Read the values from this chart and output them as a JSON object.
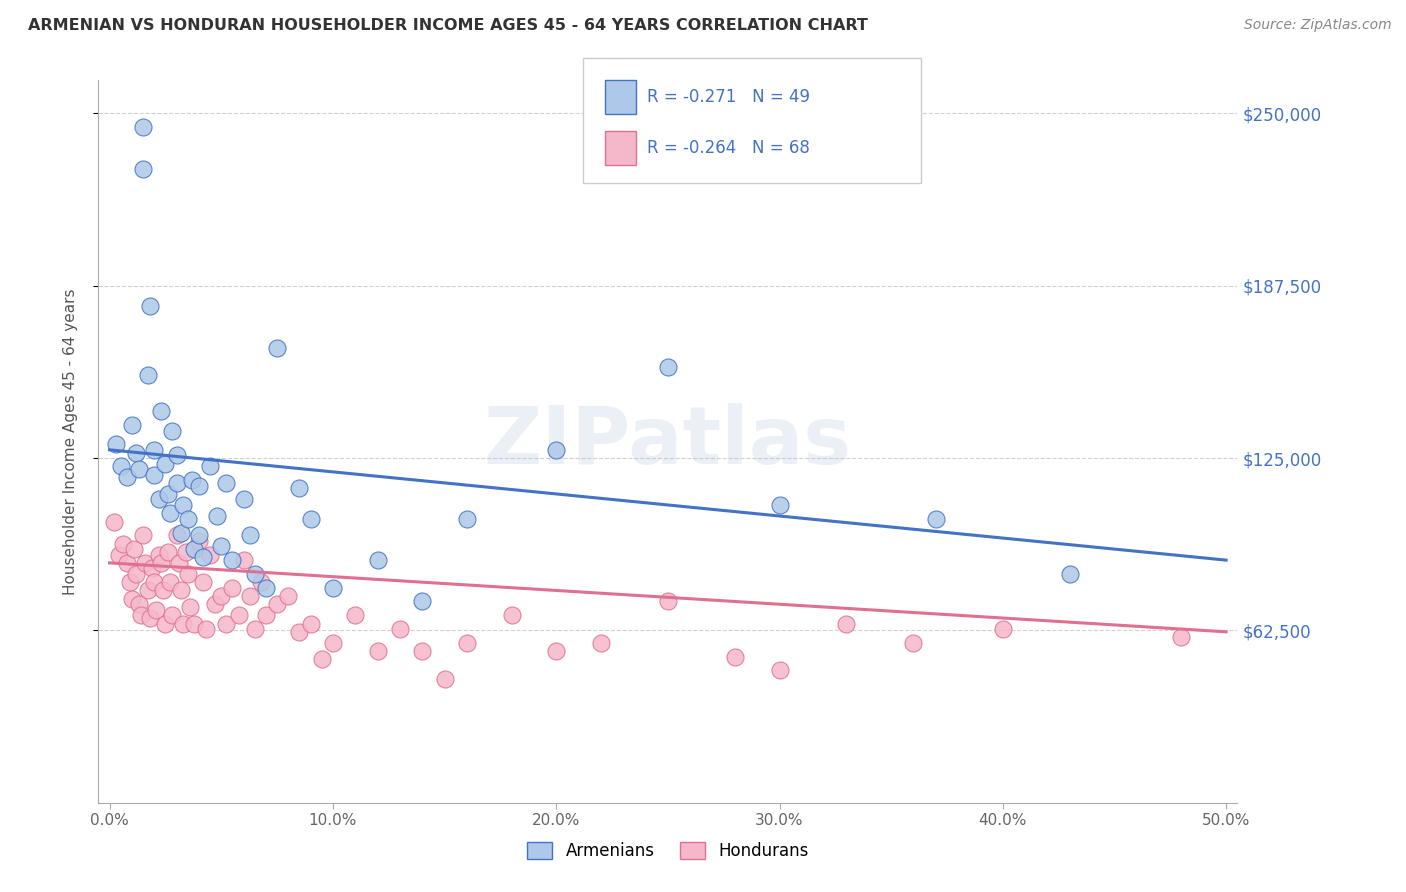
{
  "title": "ARMENIAN VS HONDURAN HOUSEHOLDER INCOME AGES 45 - 64 YEARS CORRELATION CHART",
  "source": "Source: ZipAtlas.com",
  "xlabel_ticks": [
    "0.0%",
    "10.0%",
    "20.0%",
    "30.0%",
    "40.0%",
    "50.0%"
  ],
  "xlabel_vals": [
    0.0,
    0.1,
    0.2,
    0.3,
    0.4,
    0.5
  ],
  "ylabel": "Householder Income Ages 45 - 64 years",
  "ylabel_ticks": [
    "$62,500",
    "$125,000",
    "$187,500",
    "$250,000"
  ],
  "ylabel_vals": [
    62500,
    125000,
    187500,
    250000
  ],
  "ylim": [
    0,
    262000
  ],
  "xlim": [
    -0.005,
    0.505
  ],
  "armenian_color": "#adc8e8",
  "honduran_color": "#f5b8cb",
  "armenian_line_color": "#4472c4",
  "honduran_line_color": "#e07090",
  "legend_R_armenian": "R = -0.271",
  "legend_N_armenian": "N = 49",
  "legend_R_honduran": "R = -0.264",
  "legend_N_honduran": "N = 68",
  "watermark": "ZIPatlas",
  "background_color": "#ffffff",
  "grid_color": "#cccccc",
  "title_color": "#333333",
  "source_color": "#888888",
  "legend_text_color": "#4472c4",
  "armenian_scatter_x": [
    0.003,
    0.005,
    0.008,
    0.01,
    0.012,
    0.013,
    0.015,
    0.015,
    0.017,
    0.018,
    0.02,
    0.02,
    0.022,
    0.023,
    0.025,
    0.026,
    0.027,
    0.028,
    0.03,
    0.03,
    0.032,
    0.033,
    0.035,
    0.037,
    0.038,
    0.04,
    0.04,
    0.042,
    0.045,
    0.048,
    0.05,
    0.052,
    0.055,
    0.06,
    0.063,
    0.065,
    0.07,
    0.075,
    0.085,
    0.09,
    0.1,
    0.12,
    0.14,
    0.16,
    0.2,
    0.25,
    0.3,
    0.37,
    0.43
  ],
  "armenian_scatter_y": [
    130000,
    122000,
    118000,
    137000,
    127000,
    121000,
    245000,
    230000,
    155000,
    180000,
    128000,
    119000,
    110000,
    142000,
    123000,
    112000,
    105000,
    135000,
    126000,
    116000,
    98000,
    108000,
    103000,
    117000,
    92000,
    115000,
    97000,
    89000,
    122000,
    104000,
    93000,
    116000,
    88000,
    110000,
    97000,
    83000,
    78000,
    165000,
    114000,
    103000,
    78000,
    88000,
    73000,
    103000,
    128000,
    158000,
    108000,
    103000,
    83000
  ],
  "honduran_scatter_x": [
    0.002,
    0.004,
    0.006,
    0.008,
    0.009,
    0.01,
    0.011,
    0.012,
    0.013,
    0.014,
    0.015,
    0.016,
    0.017,
    0.018,
    0.019,
    0.02,
    0.021,
    0.022,
    0.023,
    0.024,
    0.025,
    0.026,
    0.027,
    0.028,
    0.03,
    0.031,
    0.032,
    0.033,
    0.034,
    0.035,
    0.036,
    0.038,
    0.04,
    0.042,
    0.043,
    0.045,
    0.047,
    0.05,
    0.052,
    0.055,
    0.058,
    0.06,
    0.063,
    0.065,
    0.068,
    0.07,
    0.075,
    0.08,
    0.085,
    0.09,
    0.095,
    0.1,
    0.11,
    0.12,
    0.13,
    0.14,
    0.15,
    0.16,
    0.18,
    0.2,
    0.22,
    0.25,
    0.28,
    0.3,
    0.33,
    0.36,
    0.4,
    0.48
  ],
  "honduran_scatter_y": [
    102000,
    90000,
    94000,
    87000,
    80000,
    74000,
    92000,
    83000,
    72000,
    68000,
    97000,
    87000,
    77000,
    67000,
    85000,
    80000,
    70000,
    90000,
    87000,
    77000,
    65000,
    91000,
    80000,
    68000,
    97000,
    87000,
    77000,
    65000,
    91000,
    83000,
    71000,
    65000,
    95000,
    80000,
    63000,
    90000,
    72000,
    75000,
    65000,
    78000,
    68000,
    88000,
    75000,
    63000,
    80000,
    68000,
    72000,
    75000,
    62000,
    65000,
    52000,
    58000,
    68000,
    55000,
    63000,
    55000,
    45000,
    58000,
    68000,
    55000,
    58000,
    73000,
    53000,
    48000,
    65000,
    58000,
    63000,
    60000
  ]
}
